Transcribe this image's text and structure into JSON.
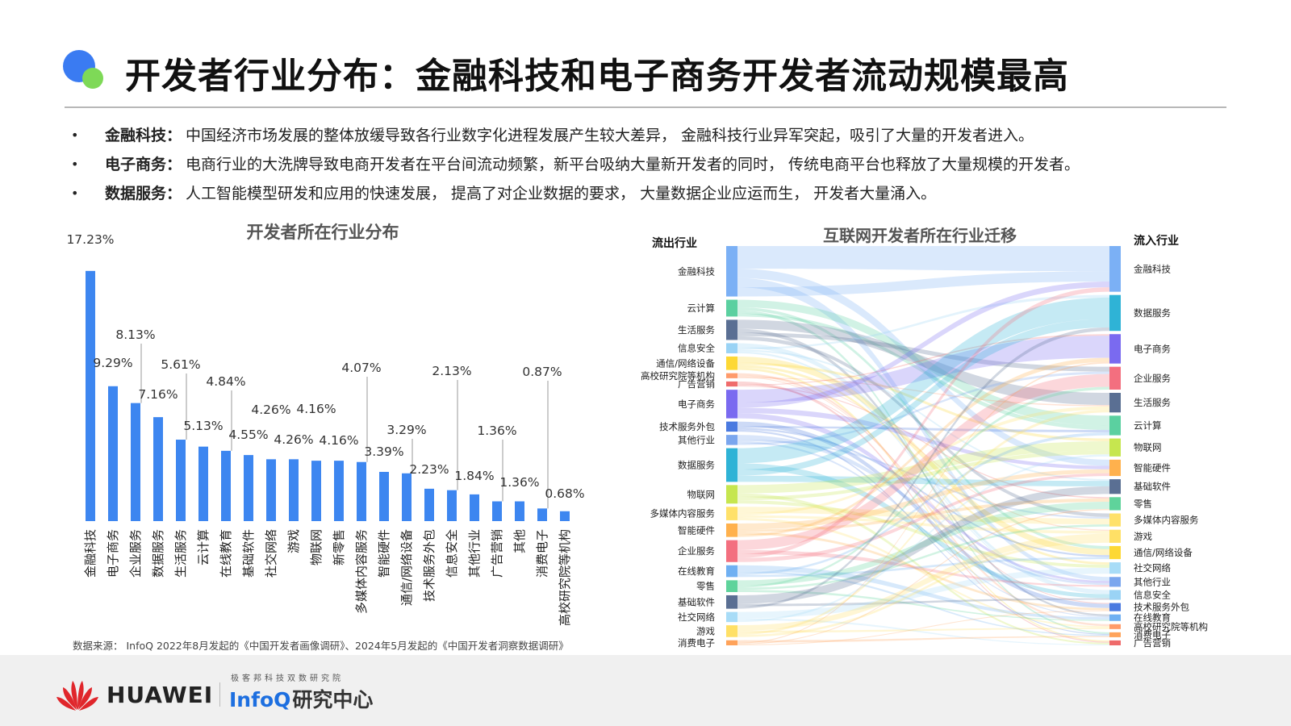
{
  "page": {
    "title": "开发者行业分布：金融科技和电子商务开发者流动规模最高",
    "bullets": [
      {
        "key": "金融科技：",
        "text": "中国经济市场发展的整体放缓导致各行业数字化进程发展产生较大差异， 金融科技行业异军突起，吸引了大量的开发者进入。"
      },
      {
        "key": "电子商务：",
        "text": "电商行业的大洗牌导致电商开发者在平台间流动频繁，新平台吸纳大量新开发者的同时， 传统电商平台也释放了大量规模的开发者。"
      },
      {
        "key": "数据服务：",
        "text": "人工智能模型研发和应用的快速发展， 提高了对企业数据的要求， 大量数据企业应运而生， 开发者大量涌入。"
      }
    ],
    "source": "数据来源： InfoQ  2022年8月发起的《中国开发者画像调研》、2024年5月发起的《中国开发者洞察数据调研》",
    "footer": {
      "brand": "HUAWEI",
      "infoq_sub": "极客邦科技双数研究院",
      "infoq_name": "InfoQ",
      "infoq_cn": "研究中心"
    }
  },
  "chart_data": [
    {
      "type": "bar",
      "title": "开发者所在行业分布",
      "categories": [
        "金融科技",
        "电子商务",
        "企业服务",
        "数据服务",
        "生活服务",
        "云计算",
        "在线教育",
        "基础软件",
        "社交网络",
        "游戏",
        "物联网",
        "新零售",
        "多媒体内容服务",
        "智能硬件",
        "通信/网络设备",
        "技术服务外包",
        "信息安全",
        "其他行业",
        "广告营销",
        "其他",
        "消费电子",
        "高校研究院等机构"
      ],
      "values": [
        17.23,
        9.29,
        8.13,
        7.16,
        5.61,
        5.13,
        4.84,
        4.55,
        4.26,
        4.26,
        4.16,
        4.16,
        4.07,
        3.39,
        3.29,
        2.23,
        2.13,
        1.84,
        1.36,
        1.36,
        0.87,
        0.68
      ],
      "labels": [
        "17.23%",
        "9.29%",
        "8.13%",
        "7.16%",
        "5.61%",
        "5.13%",
        "4.84%",
        "4.55%",
        "4.26%",
        "4.26%",
        "4.16%",
        "4.16%",
        "4.07%",
        "3.39%",
        "3.29%",
        "2.23%",
        "2.13%",
        "1.84%",
        "1.36%",
        "1.36%",
        "0.87%",
        "0.68%"
      ],
      "color": "#3d86f0",
      "ylim": [
        0,
        18
      ]
    },
    {
      "type": "sankey",
      "title": "互联网开发者所在行业迁移",
      "left_header": "流出行业",
      "right_header": "流入行业",
      "sources": [
        {
          "name": "金融科技",
          "value": 15,
          "color": "#7bb0f5"
        },
        {
          "name": "云计算",
          "value": 5,
          "color": "#5bd0a0"
        },
        {
          "name": "生活服务",
          "value": 6,
          "color": "#5a6f93"
        },
        {
          "name": "信息安全",
          "value": 3,
          "color": "#9ad3f5"
        },
        {
          "name": "通信/网络设备",
          "value": 4,
          "color": "#fdd835"
        },
        {
          "name": "高校研究院等机构",
          "value": 1.5,
          "color": "#ff9b6b"
        },
        {
          "name": "广告营销",
          "value": 1.5,
          "color": "#ef6b6b"
        },
        {
          "name": "电子商务",
          "value": 8.5,
          "color": "#7a6af0"
        },
        {
          "name": "技术服务外包",
          "value": 3,
          "color": "#4a7ae0"
        },
        {
          "name": "其他行业",
          "value": 3,
          "color": "#7aa6ee"
        },
        {
          "name": "数据服务",
          "value": 10,
          "color": "#2fb3d6"
        },
        {
          "name": "物联网",
          "value": 5.5,
          "color": "#c6e64f"
        },
        {
          "name": "多媒体内容服务",
          "value": 4,
          "color": "#ffe16a"
        },
        {
          "name": "智能硬件",
          "value": 4,
          "color": "#ffb14d"
        },
        {
          "name": "企业服务",
          "value": 6.5,
          "color": "#f36f7f"
        },
        {
          "name": "在线教育",
          "value": 3.5,
          "color": "#6fb0f2"
        },
        {
          "name": "零售",
          "value": 3.5,
          "color": "#5fd39b"
        },
        {
          "name": "基础软件",
          "value": 4,
          "color": "#5a6f93"
        },
        {
          "name": "社交网络",
          "value": 3,
          "color": "#a8dcf7"
        },
        {
          "name": "游戏",
          "value": 3.5,
          "color": "#ffe066"
        },
        {
          "name": "消费电子",
          "value": 1.5,
          "color": "#ffa35a"
        }
      ],
      "targets": [
        {
          "name": "金融科技",
          "value": 14,
          "color": "#7bb0f5"
        },
        {
          "name": "数据服务",
          "value": 11,
          "color": "#2fb3d6"
        },
        {
          "name": "电子商务",
          "value": 9,
          "color": "#7a6af0"
        },
        {
          "name": "企业服务",
          "value": 7,
          "color": "#f36f7f"
        },
        {
          "name": "生活服务",
          "value": 6,
          "color": "#5a6f93"
        },
        {
          "name": "云计算",
          "value": 6,
          "color": "#5bd0a0"
        },
        {
          "name": "物联网",
          "value": 5.5,
          "color": "#c6e64f"
        },
        {
          "name": "智能硬件",
          "value": 5,
          "color": "#ffb14d"
        },
        {
          "name": "基础软件",
          "value": 4.5,
          "color": "#5a6f93"
        },
        {
          "name": "零售",
          "value": 4,
          "color": "#5fd39b"
        },
        {
          "name": "多媒体内容服务",
          "value": 4,
          "color": "#ffe16a"
        },
        {
          "name": "游戏",
          "value": 4,
          "color": "#ffe066"
        },
        {
          "name": "通信/网络设备",
          "value": 4,
          "color": "#fdd835"
        },
        {
          "name": "社交网络",
          "value": 3.5,
          "color": "#a8dcf7"
        },
        {
          "name": "其他行业",
          "value": 3,
          "color": "#7aa6ee"
        },
        {
          "name": "信息安全",
          "value": 3,
          "color": "#9ad3f5"
        },
        {
          "name": "技术服务外包",
          "value": 2.5,
          "color": "#4a7ae0"
        },
        {
          "name": "在线教育",
          "value": 2,
          "color": "#6fb0f2"
        },
        {
          "name": "高校研究院等机构",
          "value": 1.5,
          "color": "#ff9b6b"
        },
        {
          "name": "消费电子",
          "value": 1.5,
          "color": "#ffa35a"
        },
        {
          "name": "广告营销",
          "value": 1.5,
          "color": "#ef6b6b"
        }
      ]
    }
  ]
}
